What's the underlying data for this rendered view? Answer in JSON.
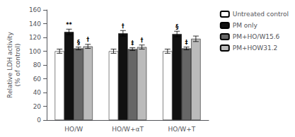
{
  "chart_data": {
    "type": "bar",
    "ylabel": "Relative LDH activity\n(% of control)",
    "categories": [
      "HO/W",
      "HO/W+αT",
      "HO/W+T"
    ],
    "series": [
      {
        "name": "Untreated control",
        "color": "white",
        "values": [
          100,
          100,
          100
        ],
        "errors": [
          3,
          3,
          3
        ]
      },
      {
        "name": "PM only",
        "color": "#111111",
        "values": [
          128,
          126,
          125
        ],
        "errors": [
          4,
          4,
          4
        ],
        "annotations": [
          "**",
          "†",
          "§"
        ]
      },
      {
        "name": "PM+HO/W15.6",
        "color": "#666666",
        "values": [
          104,
          103,
          104
        ],
        "errors": [
          2,
          2,
          2
        ],
        "annotations": [
          "§",
          "‡",
          "‡"
        ]
      },
      {
        "name": "PM+HOW31.2",
        "color": "#bbbbbb",
        "values": [
          107,
          106,
          118
        ],
        "errors": [
          3,
          3,
          4
        ],
        "annotations": [
          "†",
          "†",
          null
        ]
      }
    ],
    "ylim": [
      0,
      160
    ],
    "yticks": [
      0,
      20,
      40,
      60,
      80,
      100,
      120,
      140,
      160
    ],
    "grid": false,
    "legend": "right"
  }
}
